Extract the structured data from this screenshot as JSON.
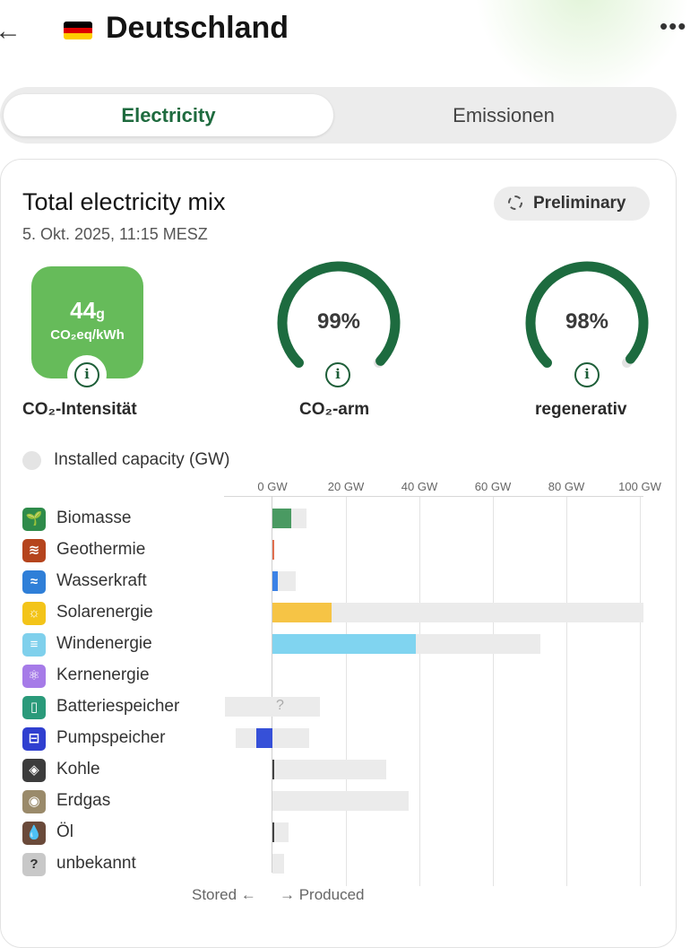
{
  "header": {
    "title": "Deutschland",
    "back_icon": "←",
    "more_icon": "•••",
    "flag_colors": [
      "#000000",
      "#dd0000",
      "#ffce00"
    ]
  },
  "tabs": [
    {
      "label": "Electricity",
      "active": true
    },
    {
      "label": "Emissionen",
      "active": false
    }
  ],
  "card": {
    "title": "Total electricity mix",
    "timestamp": "5. Okt. 2025, 11:15 MESZ",
    "badge": "Preliminary"
  },
  "metrics": {
    "co2": {
      "value": "44",
      "unit_small": "g",
      "unit": "CO₂eq/kWh",
      "label": "CO₂-Intensität",
      "color": "#66bb5a"
    },
    "low_carbon": {
      "value": "99%",
      "fraction": 0.99,
      "label": "CO₂-arm"
    },
    "renewable": {
      "value": "98%",
      "fraction": 0.98,
      "label": "regenerativ"
    },
    "gauge_color": "#1d6b3f",
    "info_icon": "i"
  },
  "capacity": {
    "label": "Installed capacity (GW)",
    "axis_ticks": [
      "0 GW",
      "20 GW",
      "40 GW",
      "60 GW",
      "80 GW",
      "100 GW"
    ],
    "footer_stored": "Stored ←",
    "footer_produced": "→ Produced",
    "rows": [
      {
        "name": "Biomasse",
        "icon": "biomass-icon",
        "glyph": "🌱",
        "icon_color": "#2e8b4a",
        "bar_color": "#4a9a62",
        "produced_gw": 5,
        "capacity_gw": 9.3
      },
      {
        "name": "Geothermie",
        "icon": "geothermal-icon",
        "glyph": "≋",
        "icon_color": "#b5441d",
        "bar_color": "#e07050",
        "produced_gw": 0.2,
        "capacity_gw": 0.2
      },
      {
        "name": "Wasserkraft",
        "icon": "hydro-icon",
        "glyph": "≈",
        "icon_color": "#2f7fd8",
        "bar_color": "#3b82e6",
        "produced_gw": 1.5,
        "capacity_gw": 6.3
      },
      {
        "name": "Solarenergie",
        "icon": "solar-icon",
        "glyph": "☼",
        "icon_color": "#f3c419",
        "bar_color": "#f6c445",
        "produced_gw": 16,
        "capacity_gw": 101
      },
      {
        "name": "Windenergie",
        "icon": "wind-icon",
        "glyph": "≡",
        "icon_color": "#7fd0ec",
        "bar_color": "#80d4f0",
        "produced_gw": 39,
        "capacity_gw": 73
      },
      {
        "name": "Kernenergie",
        "icon": "nuclear-icon",
        "glyph": "⚛",
        "icon_color": "#a67be8",
        "bar_color": "#a67be8",
        "produced_gw": 0,
        "capacity_gw": 0
      },
      {
        "name": "Batteriespeicher",
        "icon": "battery-icon",
        "glyph": "▯",
        "icon_color": "#2a9a7a",
        "bar_color": "#2a9a7a",
        "produced_gw": 0,
        "capacity_gw": 13,
        "stored_capacity_gw": 13,
        "unknown": "?"
      },
      {
        "name": "Pumpspeicher",
        "icon": "pumped-storage-icon",
        "glyph": "⊟",
        "icon_color": "#2f3fd0",
        "bar_color": "#3650d8",
        "produced_gw": 0,
        "capacity_gw": 10,
        "stored_gw": 4.5,
        "stored_capacity_gw": 10
      },
      {
        "name": "Kohle",
        "icon": "coal-icon",
        "glyph": "◈",
        "icon_color": "#3c3c3c",
        "bar_color": "#444444",
        "produced_gw": 0.3,
        "capacity_gw": 31
      },
      {
        "name": "Erdgas",
        "icon": "gas-icon",
        "glyph": "◉",
        "icon_color": "#9a8a6a",
        "bar_color": "#9a8a6a",
        "produced_gw": 0,
        "capacity_gw": 37
      },
      {
        "name": "Öl",
        "icon": "oil-icon",
        "glyph": "💧",
        "icon_color": "#6a4a3a",
        "bar_color": "#444444",
        "produced_gw": 0.3,
        "capacity_gw": 4.5
      },
      {
        "name": "unbekannt",
        "icon": "unknown-icon",
        "glyph": "?",
        "icon_color": "#c8c8c8",
        "bar_color": "#bbbbbb",
        "produced_gw": 0,
        "capacity_gw": 3.2
      }
    ]
  }
}
